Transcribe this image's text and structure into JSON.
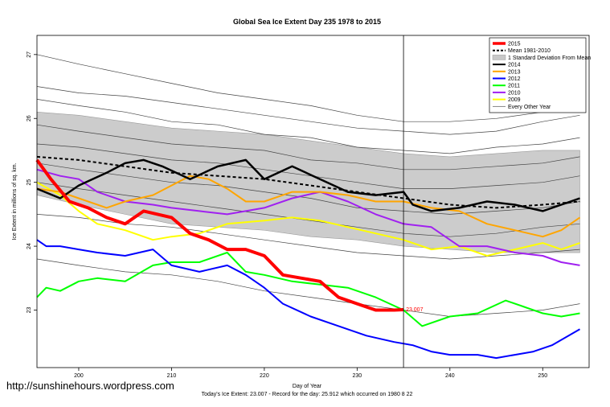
{
  "chart_data": {
    "type": "line",
    "title": "Global Sea Ice Extent Day 235 1978 to 2015",
    "xlabel": "Day of Year",
    "ylabel": "Ice Extent in millions of sq. km.",
    "xlim": [
      195.5,
      255
    ],
    "ylim": [
      22.1,
      27.3
    ],
    "xticks": [
      200,
      210,
      220,
      230,
      240,
      250
    ],
    "yticks": [
      23,
      24,
      25,
      26,
      27
    ],
    "vline_day": 235,
    "current_label": "23.007",
    "footer": "Today's Ice Extent: 23.007  - Record for the day: 25.912 which occurred on 1980 8 22",
    "legend": [
      {
        "label": "2015",
        "color": "#ff0000",
        "style": "thick"
      },
      {
        "label": "Mean 1981-2010",
        "color": "#000000",
        "style": "dashed"
      },
      {
        "label": "1 Standard Deviation From Mean",
        "color": "#c8c8c8",
        "style": "box"
      },
      {
        "label": "2014",
        "color": "#000000",
        "style": "solid"
      },
      {
        "label": "2013",
        "color": "#ffa500",
        "style": "solid"
      },
      {
        "label": "2012",
        "color": "#0000ff",
        "style": "solid"
      },
      {
        "label": "2011",
        "color": "#00ff00",
        "style": "solid"
      },
      {
        "label": "2010",
        "color": "#a020f0",
        "style": "solid"
      },
      {
        "label": "2009",
        "color": "#ffff00",
        "style": "solid"
      },
      {
        "label": "Every Other Year",
        "color": "#555555",
        "style": "thin"
      }
    ],
    "band": {
      "days": [
        195.5,
        200,
        205,
        210,
        215,
        220,
        225,
        230,
        235,
        240,
        245,
        250,
        254
      ],
      "upper": [
        26.1,
        26.05,
        25.95,
        25.85,
        25.8,
        25.75,
        25.65,
        25.55,
        25.45,
        25.4,
        25.45,
        25.5,
        25.5
      ],
      "lower": [
        24.8,
        24.65,
        24.5,
        24.35,
        24.3,
        24.25,
        24.15,
        24.1,
        24.0,
        23.95,
        23.9,
        23.9,
        23.9
      ]
    },
    "series": [
      {
        "name": "Every Other Year",
        "color": "#444444",
        "width": 0.7,
        "days": [
          195.5,
          200,
          205,
          210,
          215,
          220,
          225,
          230,
          235,
          240,
          245,
          250,
          254
        ],
        "values": [
          27.0,
          26.85,
          26.7,
          26.55,
          26.4,
          26.3,
          26.2,
          26.05,
          25.95,
          25.95,
          26.0,
          26.1,
          26.15
        ]
      },
      {
        "name": "Every Other Year",
        "color": "#444444",
        "width": 0.7,
        "days": [
          195.5,
          200,
          205,
          210,
          215,
          220,
          225,
          230,
          235,
          240,
          245,
          250,
          254
        ],
        "values": [
          26.5,
          26.4,
          26.35,
          26.25,
          26.15,
          26.05,
          25.95,
          25.85,
          25.8,
          25.75,
          25.8,
          25.95,
          26.05
        ]
      },
      {
        "name": "Every Other Year",
        "color": "#444444",
        "width": 0.7,
        "days": [
          195.5,
          200,
          205,
          210,
          215,
          220,
          225,
          230,
          235,
          240,
          245,
          250,
          254
        ],
        "values": [
          26.3,
          26.2,
          26.1,
          25.95,
          25.9,
          25.75,
          25.7,
          25.55,
          25.5,
          25.45,
          25.55,
          25.6,
          25.7
        ]
      },
      {
        "name": "Every Other Year",
        "color": "#444444",
        "width": 0.7,
        "days": [
          195.5,
          200,
          205,
          210,
          215,
          220,
          225,
          230,
          235,
          240,
          245,
          250,
          254
        ],
        "values": [
          25.9,
          25.8,
          25.7,
          25.6,
          25.55,
          25.5,
          25.35,
          25.3,
          25.2,
          25.2,
          25.25,
          25.3,
          25.4
        ]
      },
      {
        "name": "Every Other Year",
        "color": "#444444",
        "width": 0.7,
        "days": [
          195.5,
          200,
          205,
          210,
          215,
          220,
          225,
          230,
          235,
          240,
          245,
          250,
          254
        ],
        "values": [
          25.6,
          25.55,
          25.45,
          25.35,
          25.3,
          25.2,
          25.1,
          25.0,
          24.9,
          24.9,
          24.95,
          25.0,
          25.1
        ]
      },
      {
        "name": "Every Other Year",
        "color": "#444444",
        "width": 0.7,
        "days": [
          195.5,
          200,
          205,
          210,
          215,
          220,
          225,
          230,
          235,
          240,
          245,
          250,
          254
        ],
        "values": [
          25.3,
          25.2,
          25.1,
          25.0,
          24.95,
          24.85,
          24.75,
          24.6,
          24.55,
          24.5,
          24.55,
          24.6,
          24.7
        ]
      },
      {
        "name": "Every Other Year",
        "color": "#444444",
        "width": 0.7,
        "days": [
          195.5,
          200,
          205,
          210,
          215,
          220,
          225,
          230,
          235,
          240,
          245,
          250,
          254
        ],
        "values": [
          25.0,
          24.9,
          24.8,
          24.7,
          24.6,
          24.5,
          24.4,
          24.3,
          24.2,
          24.15,
          24.2,
          24.3,
          24.35
        ]
      },
      {
        "name": "Every Other Year",
        "color": "#444444",
        "width": 0.7,
        "days": [
          195.5,
          200,
          205,
          210,
          215,
          220,
          225,
          230,
          235,
          240,
          245,
          250,
          254
        ],
        "values": [
          24.5,
          24.45,
          24.35,
          24.3,
          24.2,
          24.1,
          24.0,
          23.9,
          23.85,
          23.8,
          23.85,
          23.9,
          23.95
        ]
      },
      {
        "name": "Every Other Year",
        "color": "#444444",
        "width": 0.7,
        "days": [
          195.5,
          200,
          205,
          210,
          215,
          220,
          225,
          230,
          235,
          240,
          245,
          250,
          254
        ],
        "values": [
          23.8,
          23.7,
          23.6,
          23.55,
          23.45,
          23.3,
          23.2,
          23.1,
          23.0,
          22.9,
          22.95,
          23.0,
          23.1
        ]
      },
      {
        "name": "Mean 1981-2010",
        "color": "#000000",
        "width": 2,
        "dash": "4,3",
        "days": [
          195.5,
          200,
          205,
          210,
          215,
          220,
          225,
          230,
          235,
          240,
          245,
          250,
          254
        ],
        "values": [
          25.4,
          25.35,
          25.25,
          25.15,
          25.1,
          25.05,
          24.95,
          24.85,
          24.75,
          24.65,
          24.6,
          24.65,
          24.7
        ]
      },
      {
        "name": "2009",
        "color": "#ffff00",
        "width": 2,
        "days": [
          195.5,
          198,
          200,
          202,
          205,
          208,
          210,
          213,
          216,
          220,
          223,
          226,
          229,
          232,
          235,
          238,
          241,
          244,
          247,
          250,
          252,
          254
        ],
        "values": [
          25.0,
          24.8,
          24.55,
          24.35,
          24.25,
          24.1,
          24.15,
          24.2,
          24.35,
          24.4,
          24.45,
          24.4,
          24.3,
          24.2,
          24.1,
          23.95,
          24.0,
          23.85,
          23.95,
          24.05,
          23.95,
          24.05
        ]
      },
      {
        "name": "2010",
        "color": "#a020f0",
        "width": 2,
        "days": [
          195.5,
          198,
          200,
          202,
          205,
          208,
          210,
          213,
          216,
          220,
          223,
          226,
          229,
          232,
          235,
          238,
          241,
          244,
          247,
          250,
          252,
          254
        ],
        "values": [
          25.2,
          25.1,
          25.05,
          24.85,
          24.7,
          24.65,
          24.6,
          24.55,
          24.5,
          24.6,
          24.75,
          24.85,
          24.7,
          24.5,
          24.35,
          24.3,
          24.0,
          24.0,
          23.9,
          23.85,
          23.75,
          23.7
        ]
      },
      {
        "name": "2011",
        "color": "#00ff00",
        "width": 2,
        "days": [
          195.5,
          196.5,
          198,
          200,
          202,
          205,
          208,
          210,
          213,
          216,
          218,
          220,
          223,
          226,
          229,
          232,
          235,
          237,
          240,
          243,
          246,
          248,
          250,
          252,
          254
        ],
        "values": [
          23.2,
          23.35,
          23.3,
          23.45,
          23.5,
          23.45,
          23.7,
          23.75,
          23.75,
          23.9,
          23.6,
          23.55,
          23.45,
          23.4,
          23.35,
          23.2,
          23.0,
          22.75,
          22.9,
          22.95,
          23.15,
          23.05,
          22.95,
          22.9,
          22.95
        ]
      },
      {
        "name": "2012",
        "color": "#0000ff",
        "width": 2,
        "days": [
          195.5,
          196.5,
          198,
          200,
          202,
          205,
          208,
          210,
          213,
          216,
          218,
          220,
          222,
          225,
          228,
          231,
          234,
          236,
          238,
          240,
          243,
          245,
          247,
          249,
          251,
          254
        ],
        "values": [
          24.1,
          24.0,
          24.0,
          23.95,
          23.9,
          23.85,
          23.95,
          23.7,
          23.6,
          23.7,
          23.55,
          23.35,
          23.1,
          22.9,
          22.75,
          22.6,
          22.5,
          22.45,
          22.35,
          22.3,
          22.3,
          22.25,
          22.3,
          22.35,
          22.45,
          22.7
        ]
      },
      {
        "name": "2013",
        "color": "#ffa500",
        "width": 2,
        "days": [
          195.5,
          198,
          200,
          203,
          205,
          208,
          210,
          212,
          214,
          216,
          218,
          220,
          223,
          226,
          229,
          232,
          235,
          238,
          241,
          244,
          247,
          250,
          252,
          254
        ],
        "values": [
          24.9,
          24.85,
          24.75,
          24.6,
          24.7,
          24.8,
          24.95,
          25.1,
          25.05,
          24.9,
          24.7,
          24.7,
          24.85,
          24.85,
          24.8,
          24.7,
          24.7,
          24.6,
          24.55,
          24.35,
          24.25,
          24.15,
          24.25,
          24.45
        ]
      },
      {
        "name": "2014",
        "color": "#000000",
        "width": 2.5,
        "days": [
          195.5,
          198,
          200,
          203,
          205,
          207,
          209,
          212,
          215,
          218,
          220,
          223,
          226,
          229,
          232,
          235,
          236,
          238,
          241,
          244,
          247,
          250,
          252,
          254
        ],
        "values": [
          24.9,
          24.75,
          24.95,
          25.15,
          25.3,
          25.35,
          25.25,
          25.05,
          25.25,
          25.35,
          25.05,
          25.25,
          25.05,
          24.85,
          24.8,
          24.85,
          24.65,
          24.55,
          24.6,
          24.7,
          24.65,
          24.55,
          24.65,
          24.75
        ]
      },
      {
        "name": "2015",
        "color": "#ff0000",
        "width": 4,
        "days": [
          195.5,
          197,
          199,
          201,
          203,
          205,
          207,
          210,
          212,
          214,
          216,
          218,
          220,
          222,
          224,
          226,
          228,
          230,
          232,
          234,
          235
        ],
        "values": [
          25.35,
          25.05,
          24.7,
          24.6,
          24.45,
          24.35,
          24.55,
          24.45,
          24.2,
          24.1,
          23.95,
          23.95,
          23.85,
          23.55,
          23.5,
          23.45,
          23.2,
          23.1,
          23.0,
          23.0,
          23.007
        ]
      }
    ]
  },
  "watermark": "http://sunshinehours.wordpress.com"
}
